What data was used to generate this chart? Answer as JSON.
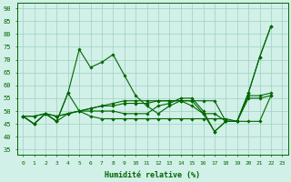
{
  "xlabel": "Humidité relative (%)",
  "bg_color": "#d1f0e8",
  "grid_color": "#a0cfc0",
  "line_color": "#006600",
  "xlim": [
    -0.5,
    23.5
  ],
  "ylim": [
    33,
    92
  ],
  "yticks": [
    35,
    40,
    45,
    50,
    55,
    60,
    65,
    70,
    75,
    80,
    85,
    90
  ],
  "xticks": [
    0,
    1,
    2,
    3,
    4,
    5,
    6,
    7,
    8,
    9,
    10,
    11,
    12,
    13,
    14,
    15,
    16,
    17,
    18,
    19,
    20,
    21,
    22,
    23
  ],
  "series": [
    [
      48,
      45,
      49,
      46,
      57,
      74,
      67,
      69,
      72,
      64,
      56,
      52,
      49,
      52,
      54,
      52,
      49,
      42,
      46,
      46,
      57,
      71,
      83
    ],
    [
      48,
      45,
      49,
      46,
      49,
      50,
      48,
      47,
      47,
      47,
      47,
      47,
      47,
      47,
      47,
      47,
      47,
      47,
      47,
      46,
      46,
      46,
      56
    ],
    [
      48,
      48,
      49,
      48,
      49,
      50,
      51,
      52,
      52,
      53,
      53,
      53,
      54,
      54,
      54,
      54,
      54,
      54,
      46,
      46,
      55,
      55,
      56
    ],
    [
      48,
      48,
      49,
      48,
      49,
      50,
      51,
      52,
      53,
      54,
      54,
      54,
      54,
      54,
      54,
      54,
      49,
      49,
      46,
      46,
      56,
      56,
      57
    ],
    [
      48,
      45,
      49,
      46,
      57,
      50,
      50,
      50,
      50,
      49,
      49,
      49,
      52,
      53,
      55,
      55,
      50,
      42,
      46,
      46,
      57,
      71,
      83
    ]
  ]
}
